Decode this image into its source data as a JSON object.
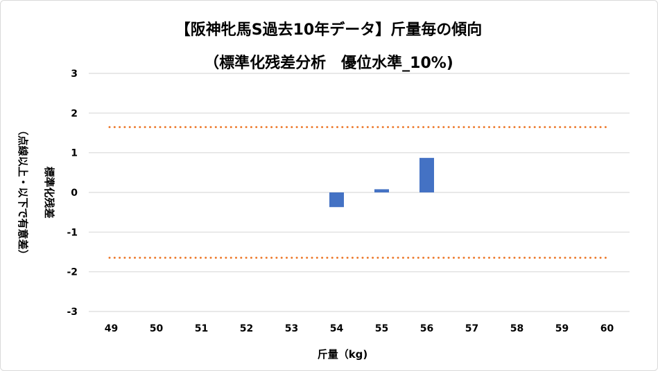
{
  "chart_data": {
    "type": "bar",
    "title_line1": "【阪神牝馬S過去10年データ】斤量毎の傾向",
    "title_line2": "（標準化残差分析　優位水準_10%)",
    "xlabel": "斤量（kg)",
    "ylabel_line1": "標準化残差",
    "ylabel_line2": "（点線以上・以下で有意差）",
    "categories": [
      "49",
      "50",
      "51",
      "52",
      "53",
      "54",
      "55",
      "56",
      "57",
      "58",
      "59",
      "60"
    ],
    "values": [
      null,
      null,
      null,
      null,
      null,
      -0.37,
      0.08,
      0.87,
      null,
      null,
      null,
      null
    ],
    "ylim": [
      -3,
      3
    ],
    "yticks": [
      "3",
      "2",
      "1",
      "0",
      "-1",
      "-2",
      "-3"
    ],
    "threshold_upper": 1.645,
    "threshold_lower": -1.645,
    "grid": true,
    "legend": "none",
    "colors": {
      "bar": "#4472c4",
      "threshold": "#ed7d31",
      "grid": "#d9d9d9"
    }
  }
}
